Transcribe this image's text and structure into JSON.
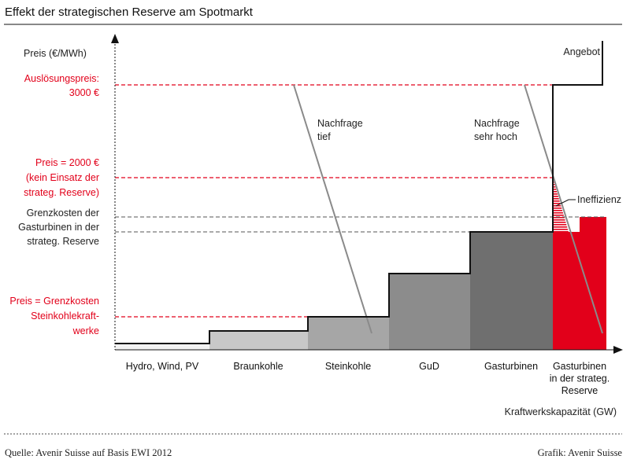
{
  "chart_data": {
    "type": "step",
    "title": "Effekt der strategischen Reserve am Spotmarkt",
    "ylabel": "Preis  (€/MWh)",
    "xlabel": "Kraftwerkskapazität (GW)",
    "categories": [
      {
        "id": "hydro",
        "label": [
          "Hydro, Wind, PV"
        ],
        "color": "#f2f2f2",
        "level": 3
      },
      {
        "id": "braun",
        "label": [
          "Braunkohle"
        ],
        "color": "#c8c8c8",
        "level": 15
      },
      {
        "id": "stein",
        "label": [
          "Steinkohle"
        ],
        "color": "#a6a6a6",
        "level": 34
      },
      {
        "id": "gud",
        "label": [
          "GuD"
        ],
        "color": "#8c8c8c",
        "level": 90
      },
      {
        "id": "gas",
        "label": [
          "Gasturbinen"
        ],
        "color": "#6f6f6f",
        "level": 142
      },
      {
        "id": "reserve",
        "label": [
          "Gasturbinen",
          "in der strateg.",
          "Reserve"
        ],
        "color": "#e2001a",
        "level": 162
      }
    ],
    "series": [
      {
        "name": "Angebot",
        "color": "#111111"
      },
      {
        "name": "Nachfrage tief",
        "label": [
          "Nachfrage",
          "tief"
        ],
        "color": "#8a8a8a"
      },
      {
        "name": "Nachfrage sehr hoch",
        "label": [
          "Nachfrage",
          "sehr hoch"
        ],
        "color": "#8a8a8a"
      }
    ],
    "price_levels": [
      {
        "label": [
          "Auslösungspreis:",
          "3000 €"
        ],
        "color": "#e2001a",
        "style": "dashed"
      },
      {
        "label": [
          "Preis = 2000 €",
          "(kein Einsatz der",
          "strateg. Reserve)"
        ],
        "color": "#e2001a",
        "style": "dashed"
      },
      {
        "label": [
          "Grenzkosten der",
          "Gasturbinen in der",
          "strateg. Reserve"
        ],
        "color": "#444444",
        "style": "dashed"
      },
      {
        "label": [
          "Preis = Grenzkosten",
          "Steinkohlekraft-",
          "werke"
        ],
        "color": "#e2001a",
        "style": "dashed"
      }
    ],
    "annotations": [
      {
        "text": "Ineffizienz",
        "color": "#e2001a",
        "pattern": "hatched"
      }
    ],
    "grid": false,
    "legend": "none"
  },
  "footer": {
    "source": "Quelle: Avenir Suisse auf Basis EWI 2012",
    "credit": "Grafik: Avenir Suisse"
  }
}
